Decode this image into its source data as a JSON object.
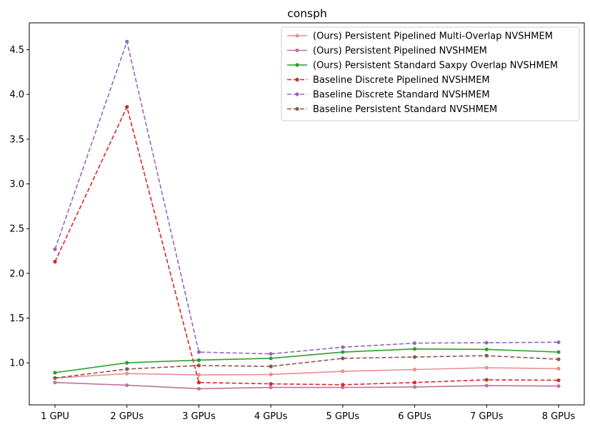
{
  "chart_data": {
    "type": "line",
    "title": "consph",
    "xlabel": "",
    "ylabel": "",
    "categories": [
      "1 GPU",
      "2 GPUs",
      "3 GPUs",
      "4 GPUs",
      "5 GPUs",
      "6 GPUs",
      "7 GPUs",
      "8 GPUs"
    ],
    "ylim": [
      0.53,
      4.8
    ],
    "yticks": [
      1.0,
      1.5,
      2.0,
      2.5,
      3.0,
      3.5,
      4.0,
      4.5
    ],
    "ytick_labels": [
      "1.0",
      "1.5",
      "2.0",
      "2.5",
      "3.0",
      "3.5",
      "4.0",
      "4.5"
    ],
    "grid": false,
    "legend_position": "top-right",
    "series": [
      {
        "name": "(Ours) Persistent Pipelined Multi-Overlap NVSHMEM",
        "color": "#e8908e",
        "dashed": false,
        "values": [
          0.83,
          0.88,
          0.865,
          0.87,
          0.905,
          0.925,
          0.945,
          0.935
        ]
      },
      {
        "name": "(Ours) Persistent Pipelined NVSHMEM",
        "color": "#c0739e",
        "dashed": false,
        "values": [
          0.78,
          0.75,
          0.71,
          0.725,
          0.725,
          0.73,
          0.745,
          0.74
        ]
      },
      {
        "name": "(Ours) Persistent Standard Saxpy Overlap NVSHMEM",
        "color": "#2ca02c",
        "dashed": false,
        "values": [
          0.89,
          1.0,
          1.03,
          1.05,
          1.12,
          1.155,
          1.15,
          1.12
        ]
      },
      {
        "name": "Baseline Discrete Pipelined NVSHMEM",
        "color": "#d62728",
        "dashed": true,
        "values": [
          2.13,
          3.86,
          0.78,
          0.765,
          0.755,
          0.78,
          0.81,
          0.805
        ]
      },
      {
        "name": "Baseline Discrete Standard NVSHMEM",
        "color": "#9467bd",
        "dashed": true,
        "values": [
          2.27,
          4.59,
          1.12,
          1.1,
          1.175,
          1.22,
          1.225,
          1.23
        ]
      },
      {
        "name": "Baseline Persistent Standard NVSHMEM",
        "color": "#8c564b",
        "dashed": true,
        "values": [
          0.83,
          0.93,
          0.97,
          0.96,
          1.05,
          1.065,
          1.08,
          1.04
        ]
      }
    ]
  }
}
